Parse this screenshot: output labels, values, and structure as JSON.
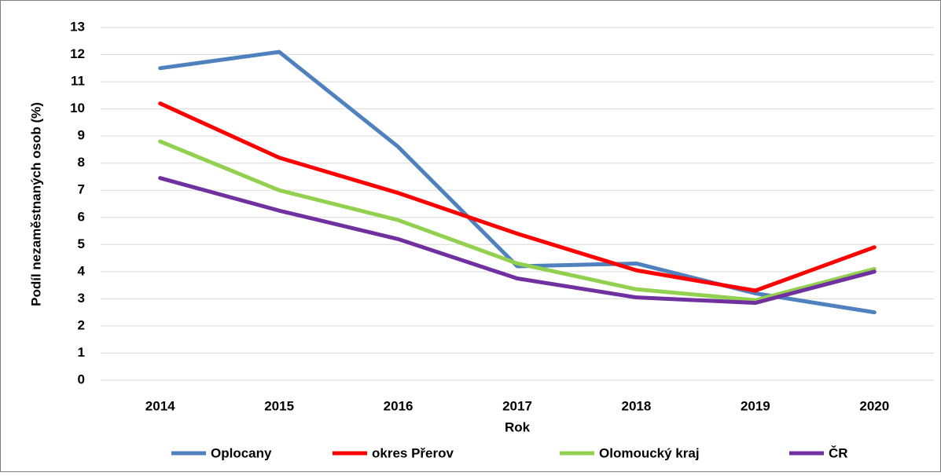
{
  "chart_data": {
    "type": "line",
    "x_label": "Rok",
    "y_label": "Podíl nezaměstnaných osob (%)",
    "categories": [
      "2014",
      "2015",
      "2016",
      "2017",
      "2018",
      "2019",
      "2020"
    ],
    "series": [
      {
        "name": "Oplocany",
        "color": "#4e81bd",
        "values": [
          11.5,
          12.1,
          8.6,
          4.2,
          4.3,
          3.2,
          2.5
        ]
      },
      {
        "name": "okres Přerov",
        "color": "#ff0000",
        "values": [
          10.2,
          8.2,
          6.9,
          5.4,
          4.05,
          3.3,
          4.9
        ]
      },
      {
        "name": "Olomoucký kraj",
        "color": "#92d050",
        "values": [
          8.8,
          7.0,
          5.9,
          4.3,
          3.35,
          2.95,
          4.1
        ]
      },
      {
        "name": "ČR",
        "color": "#7030a0",
        "values": [
          7.45,
          6.25,
          5.2,
          3.75,
          3.05,
          2.85,
          4.0
        ]
      }
    ],
    "ylim": [
      0,
      13
    ],
    "yticks": [
      0,
      1,
      2,
      3,
      4,
      5,
      6,
      7,
      8,
      9,
      10,
      11,
      12,
      13
    ],
    "grid": true,
    "legend": "bottom"
  }
}
